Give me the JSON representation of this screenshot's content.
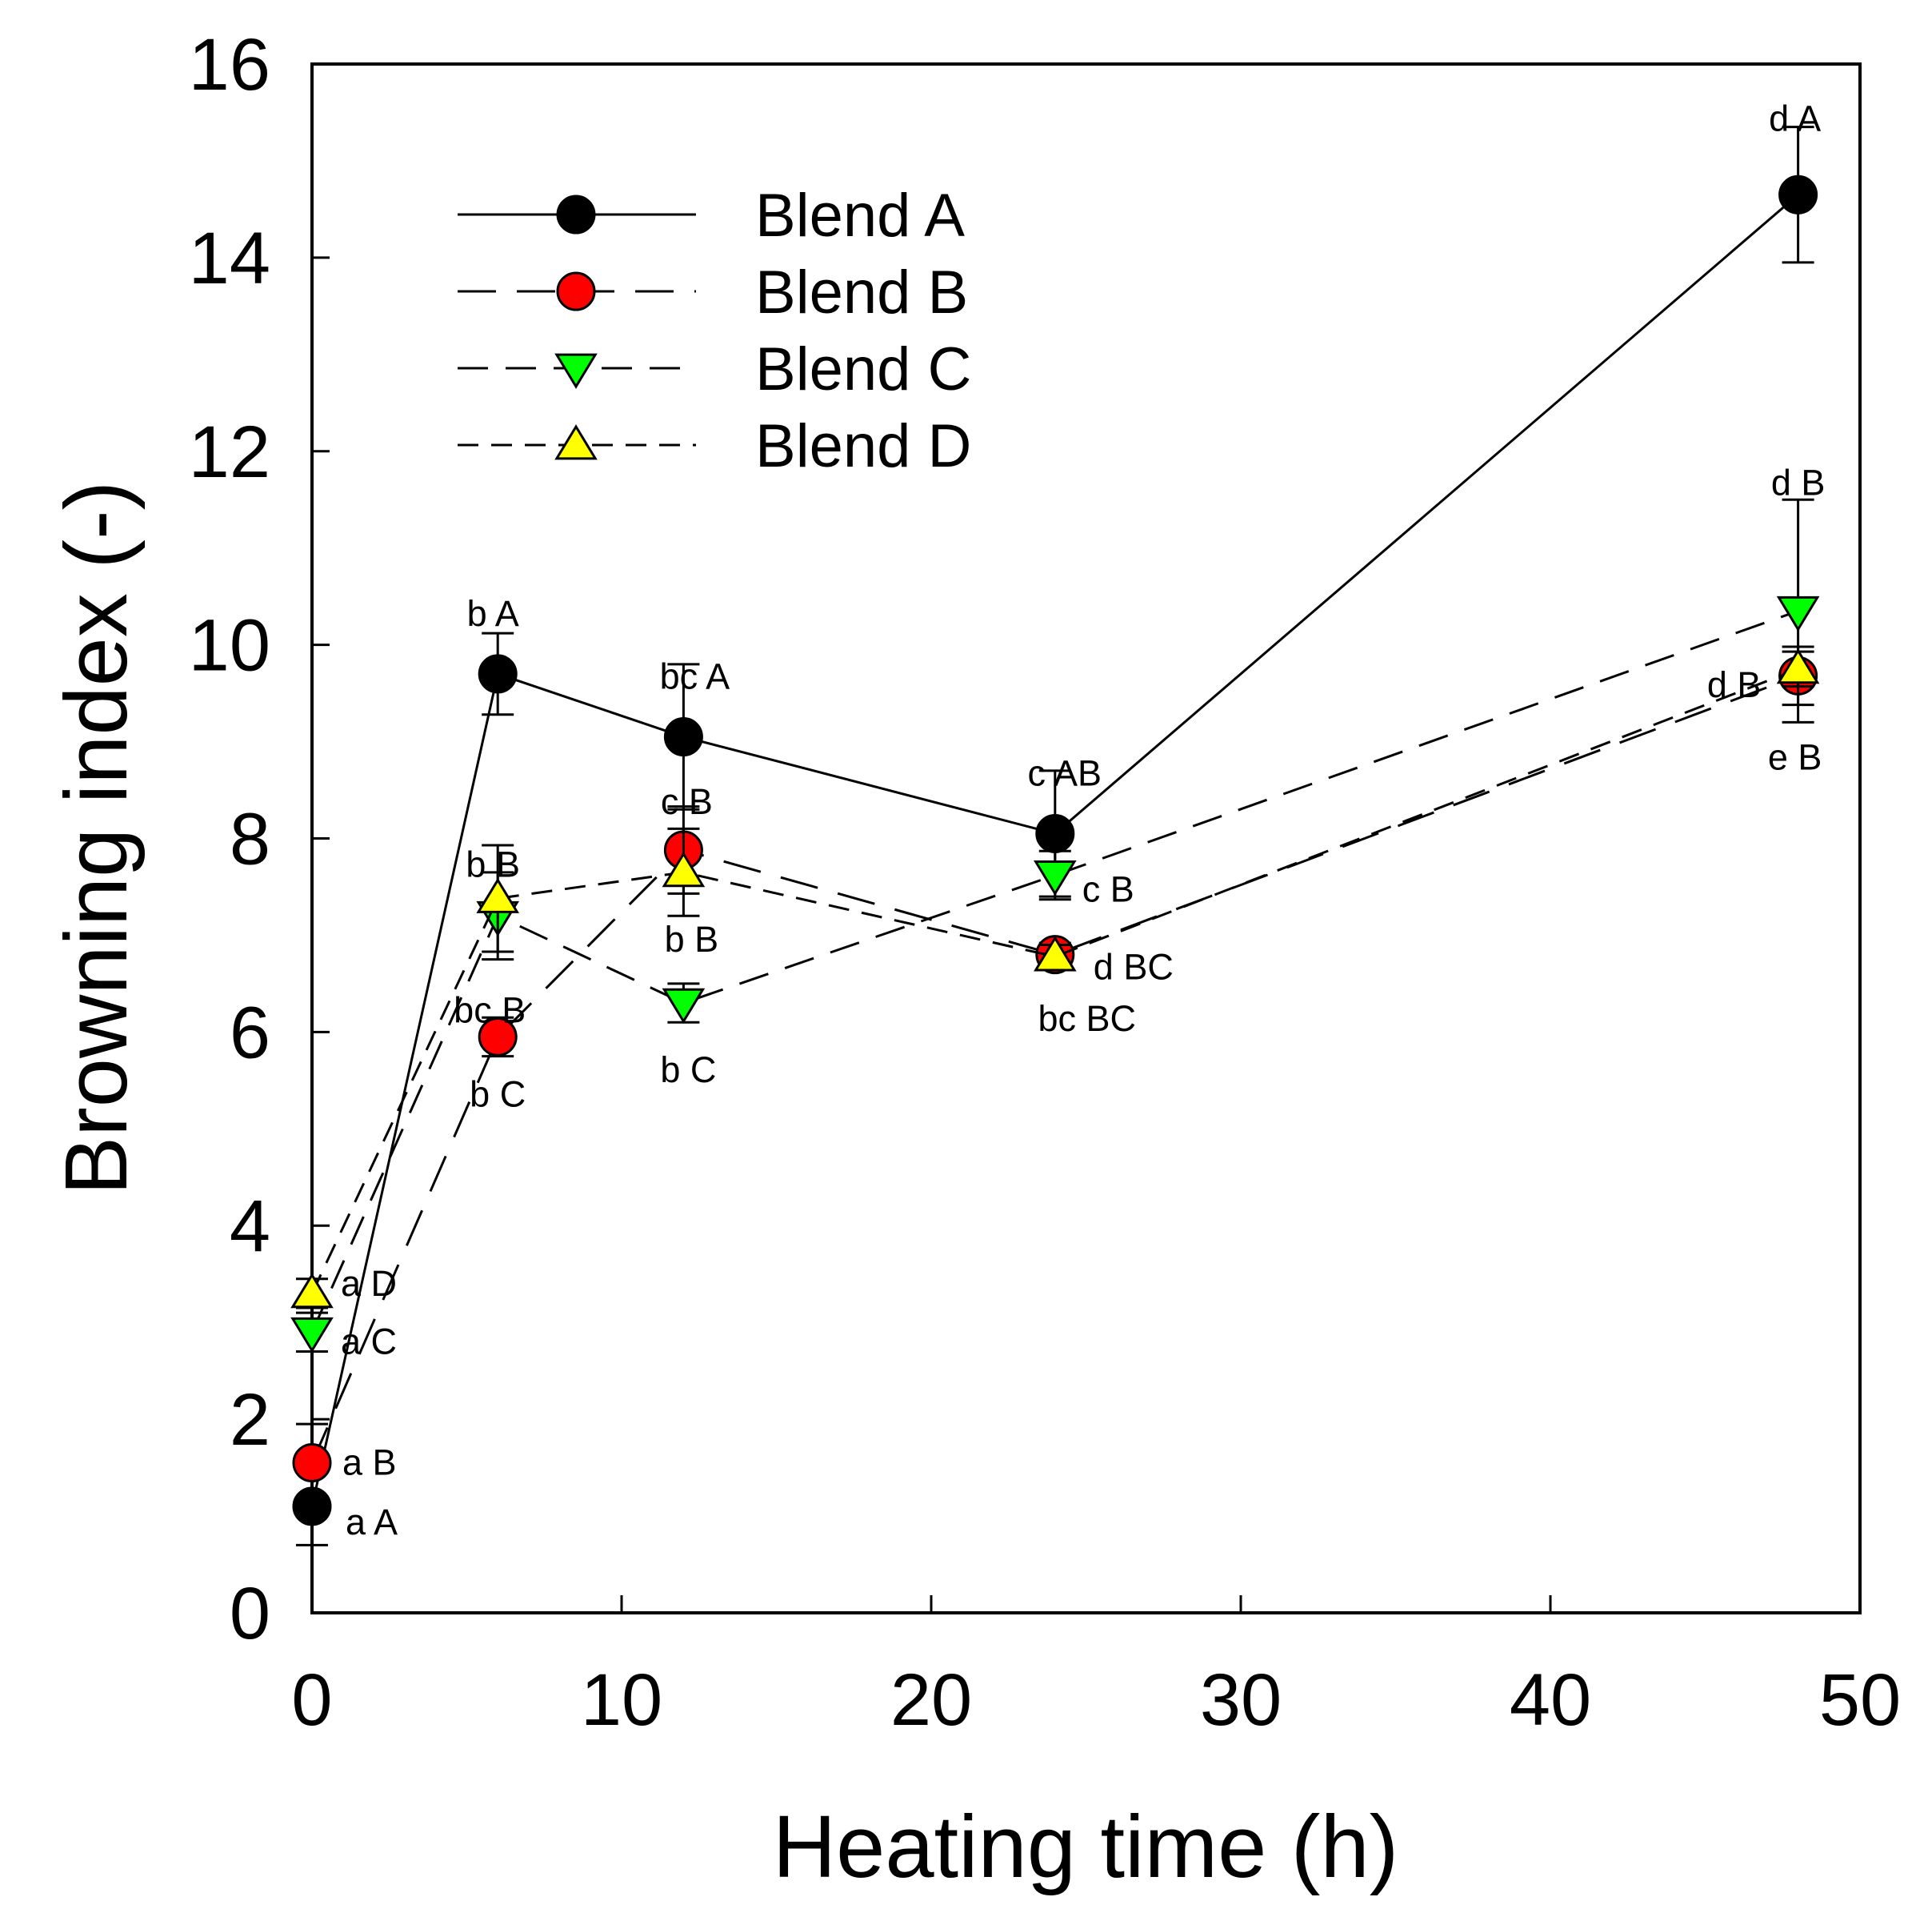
{
  "chart_data": {
    "type": "line",
    "title": "",
    "xlabel": "Heating time (h)",
    "ylabel": "Browning index (-)",
    "xlim": [
      0,
      50
    ],
    "ylim": [
      0,
      16
    ],
    "xticks": [
      0,
      10,
      20,
      30,
      40,
      50
    ],
    "yticks": [
      0,
      2,
      4,
      6,
      8,
      10,
      12,
      14,
      16
    ],
    "grid": false,
    "legend_position": "top-left",
    "x": [
      0,
      6,
      12,
      24,
      48
    ],
    "series": [
      {
        "name": "Blend A",
        "line_style": "solid",
        "marker": "circle",
        "color": "#000000",
        "values": [
          1.1,
          9.7,
          9.05,
          8.05,
          14.65
        ],
        "errors": [
          0.4,
          0.42,
          0.75,
          0.65,
          0.7
        ],
        "annotations": [
          "a A",
          "b A",
          "bc A",
          "c AB",
          "d A"
        ]
      },
      {
        "name": "Blend B",
        "line_style": "longdash",
        "marker": "circle",
        "color": "#ff0000",
        "values": [
          1.55,
          5.95,
          7.88,
          6.8,
          9.68
        ],
        "errors": [
          0.4,
          0.2,
          0.45,
          0.12,
          0.3
        ],
        "annotations": [
          "a B",
          "b C",
          "c B",
          "d BC",
          "e B"
        ]
      },
      {
        "name": "Blend C",
        "line_style": "dash",
        "marker": "triangle-down",
        "color": "#00ff00",
        "values": [
          2.9,
          7.2,
          6.3,
          7.62,
          10.35
        ],
        "errors": [
          0.2,
          0.45,
          0.2,
          0.25,
          1.15
        ],
        "annotations": [
          "a C",
          "bc B",
          "b C",
          "c B",
          "d B"
        ]
      },
      {
        "name": "Blend D",
        "line_style": "shortdash",
        "marker": "triangle-up",
        "color": "#ffff00",
        "values": [
          3.3,
          7.38,
          7.65,
          6.78,
          9.75
        ],
        "errors": [
          0.15,
          0.55,
          0.45,
          0.12,
          0.18
        ],
        "annotations": [
          "a D",
          "b B",
          "b B",
          "bc BC",
          "d B"
        ]
      }
    ]
  }
}
